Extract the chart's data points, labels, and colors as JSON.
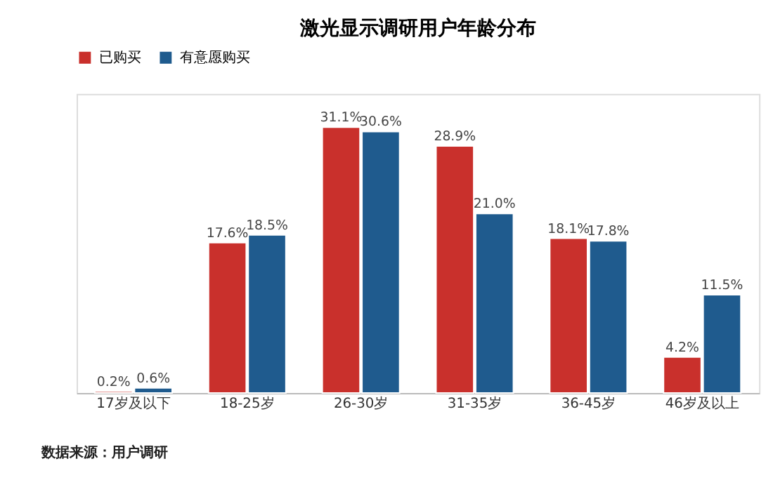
{
  "chart_data": {
    "type": "bar",
    "title": "激光显示调研用户年龄分布",
    "categories": [
      "17岁及以下",
      "18-25岁",
      "26-30岁",
      "31-35岁",
      "36-45岁",
      "46岁及以上"
    ],
    "series": [
      {
        "name": "已购买",
        "color": "#c9302c",
        "values": [
          0.2,
          17.6,
          31.1,
          28.9,
          18.1,
          4.2
        ],
        "value_labels": [
          "0.2%",
          "17.6%",
          "31.1%",
          "28.9%",
          "18.1%",
          "4.2%"
        ]
      },
      {
        "name": "有意愿购买",
        "color": "#1f5b8e",
        "values": [
          0.6,
          18.5,
          30.6,
          21.0,
          17.8,
          11.5
        ],
        "value_labels": [
          "0.6%",
          "18.5%",
          "30.6%",
          "21.0%",
          "17.8%",
          "11.5%"
        ]
      }
    ],
    "legend": "top",
    "grid": false,
    "tick_labels": "x",
    "annotations": [
      "数据来源：用户调研"
    ]
  }
}
